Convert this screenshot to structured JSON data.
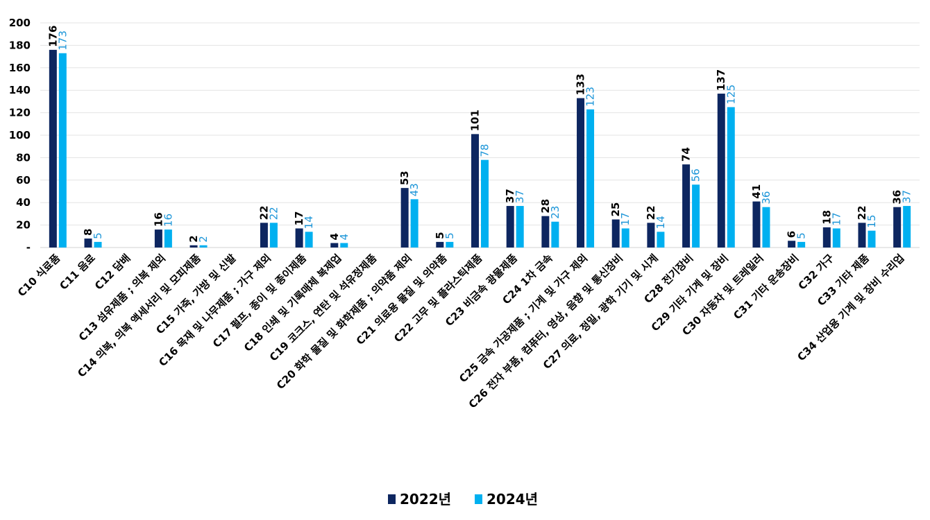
{
  "chart_data": {
    "type": "bar",
    "title": "",
    "xlabel": "",
    "ylabel": "",
    "ylim": [
      0,
      200
    ],
    "yticks": [
      0,
      20,
      40,
      60,
      80,
      100,
      120,
      140,
      160,
      180,
      200
    ],
    "ytick_labels": [
      "-",
      "20",
      "40",
      "60",
      "80",
      "100",
      "120",
      "140",
      "160",
      "180",
      "200"
    ],
    "grid": true,
    "legend_position": "bottom",
    "categories": [
      "C10 식료품",
      "C11 음료",
      "C12 담배",
      "C13 섬유제품 ; 의복 제외",
      "C14 의복, 의복 액세서리 및 모피제품",
      "C15 가죽, 가방 및 신발",
      "C16 목재 및 나무제품 ; 가구 제외",
      "C17 펄프, 종이 및 종이제품",
      "C18 인쇄 및 기록매체 복제업",
      "C19 코크스, 연탄 및 석유정제품",
      "C20 화학 물질 및 화학제품 ; 의약품 제외",
      "C21 의료용 물질 및 의약품",
      "C22 고무 및 플라스틱제품",
      "C23 비금속 광물제품",
      "C24 1차 금속",
      "C25 금속 가공제품 ; 기계 및 가구 제외",
      "C26 전자 부품, 컴퓨터, 영상, 음향 및 통신장비",
      "C27 의료, 정밀, 광학 기기 및 시계",
      "C28 전기장비",
      "C29 기타 기계 및 장비",
      "C30 자동차 및 트레일러",
      "C31 기타 운송장비",
      "C32 가구",
      "C33 기타 제품",
      "C34 산업용 기계 및 장비 수리업"
    ],
    "series": [
      {
        "name": "2022년",
        "color": "#0d2660",
        "values": [
          176,
          8,
          null,
          16,
          2,
          null,
          22,
          17,
          4,
          null,
          53,
          5,
          101,
          37,
          28,
          133,
          25,
          22,
          74,
          137,
          41,
          6,
          18,
          22,
          36
        ]
      },
      {
        "name": "2024년",
        "color": "#00b0f0",
        "values": [
          173,
          5,
          null,
          16,
          2,
          null,
          22,
          14,
          4,
          null,
          43,
          5,
          78,
          37,
          23,
          123,
          17,
          14,
          56,
          125,
          36,
          5,
          17,
          15,
          37
        ]
      }
    ]
  }
}
